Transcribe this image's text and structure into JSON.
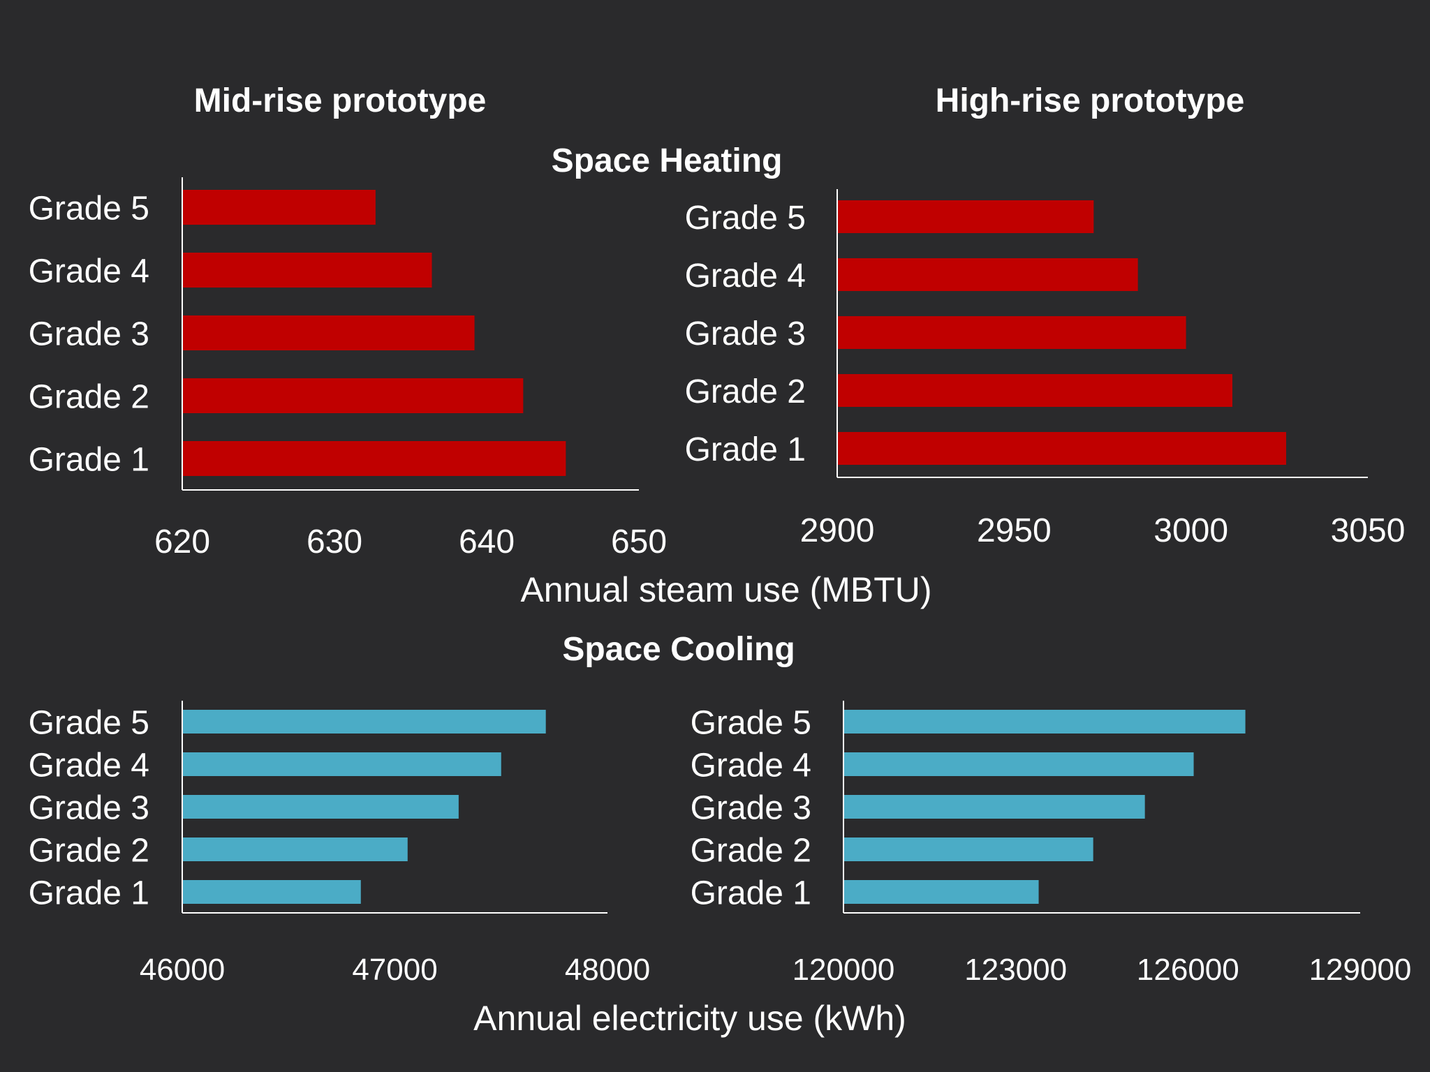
{
  "headings": {
    "mid_rise": "Mid-rise prototype",
    "high_rise": "High-rise prototype",
    "heating": "Space Heating",
    "cooling": "Space Cooling"
  },
  "axis_titles": {
    "heating": "Annual steam use (MBTU)",
    "cooling": "Annual electricity use (kWh)"
  },
  "colors": {
    "background": "#2a2a2c",
    "heating_bar": "#c00000",
    "cooling_bar": "#4bacc6",
    "text": "#ffffff"
  },
  "chart_data": [
    {
      "id": "heating-mid",
      "type": "bar",
      "orientation": "horizontal",
      "title": "Space Heating — Mid-rise prototype",
      "xlabel": "Annual steam use (MBTU)",
      "categories": [
        "Grade 5",
        "Grade 4",
        "Grade 3",
        "Grade 2",
        "Grade 1"
      ],
      "values": [
        632.7,
        636.4,
        639.2,
        642.4,
        645.2
      ],
      "xlim": [
        620,
        650
      ],
      "ticks": [
        "620",
        "630",
        "640",
        "650"
      ],
      "color": "#c00000"
    },
    {
      "id": "heating-high",
      "type": "bar",
      "orientation": "horizontal",
      "title": "Space Heating — High-rise prototype",
      "xlabel": "Annual steam use (MBTU)",
      "categories": [
        "Grade 5",
        "Grade 4",
        "Grade 3",
        "Grade 2",
        "Grade 1"
      ],
      "values": [
        2972.5,
        2985,
        2998.6,
        3011.7,
        3026.9
      ],
      "xlim": [
        2900,
        3050
      ],
      "ticks": [
        "2900",
        "2950",
        "3000",
        "3050"
      ],
      "color": "#c00000"
    },
    {
      "id": "cooling-mid",
      "type": "bar",
      "orientation": "horizontal",
      "title": "Space Cooling — Mid-rise prototype",
      "xlabel": "Annual electricity use (kWh)",
      "categories": [
        "Grade 5",
        "Grade 4",
        "Grade 3",
        "Grade 2",
        "Grade 1"
      ],
      "values": [
        47710,
        47500,
        47300,
        47060,
        46840
      ],
      "xlim": [
        46000,
        48000
      ],
      "ticks": [
        "46000",
        "47000",
        "48000"
      ],
      "color": "#4bacc6"
    },
    {
      "id": "cooling-high",
      "type": "bar",
      "orientation": "horizontal",
      "title": "Space Cooling — High-rise prototype",
      "xlabel": "Annual electricity use (kWh)",
      "categories": [
        "Grade 5",
        "Grade 4",
        "Grade 3",
        "Grade 2",
        "Grade 1"
      ],
      "values": [
        127000,
        126100,
        125250,
        124350,
        123400
      ],
      "xlim": [
        120000,
        129000
      ],
      "ticks": [
        "120000",
        "123000",
        "126000",
        "129000"
      ],
      "color": "#4bacc6"
    }
  ]
}
